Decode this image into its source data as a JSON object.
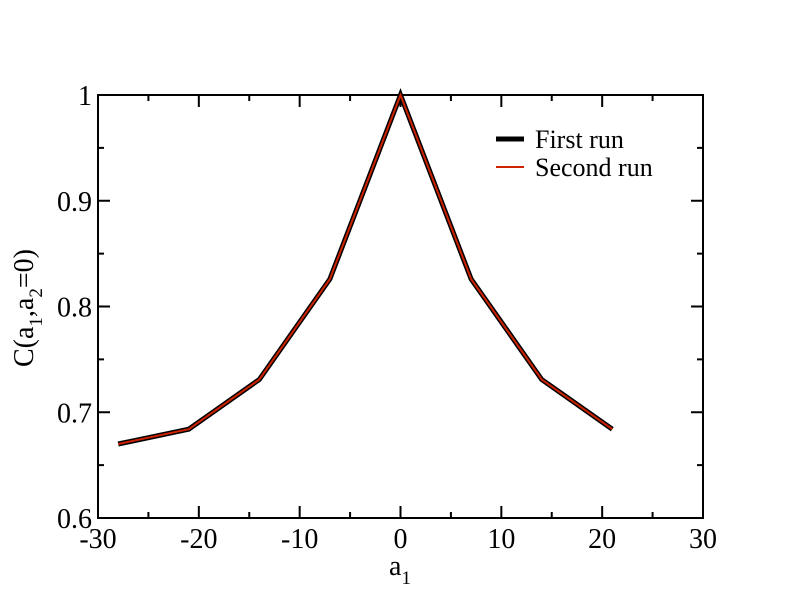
{
  "chart_data": {
    "type": "line",
    "xlabel": {
      "main": "a",
      "sub": "1"
    },
    "ylabel": {
      "p1": "C(a",
      "s1": "1",
      "p2": ",a",
      "s2": "2",
      "p3": "=0)"
    },
    "xlim": [
      -30,
      30
    ],
    "ylim": [
      0.6,
      1.0
    ],
    "xticks": [
      -30,
      -20,
      -10,
      0,
      10,
      20,
      30
    ],
    "xtick_labels": [
      "-30",
      "-20",
      "-10",
      "0",
      "10",
      "20",
      "30"
    ],
    "yticks": [
      0.6,
      0.7,
      0.8,
      0.9,
      1.0
    ],
    "ytick_labels": [
      "0.6",
      "0.7",
      "0.8",
      "0.9",
      "1"
    ],
    "grid": false,
    "legend_position": "top-right",
    "series": [
      {
        "name": "First run",
        "color": "#000000",
        "x": [
          -28,
          -21,
          -14,
          -7,
          0,
          7,
          14,
          21
        ],
        "y": [
          0.67,
          0.684,
          0.731,
          0.826,
          1.0,
          0.826,
          0.731,
          0.684
        ]
      },
      {
        "name": "Second run",
        "color": "#cc2200",
        "x": [
          -28,
          -21,
          -14,
          -7,
          0,
          7,
          14,
          21
        ],
        "y": [
          0.67,
          0.684,
          0.731,
          0.826,
          1.0,
          0.826,
          0.731,
          0.684
        ]
      }
    ]
  }
}
